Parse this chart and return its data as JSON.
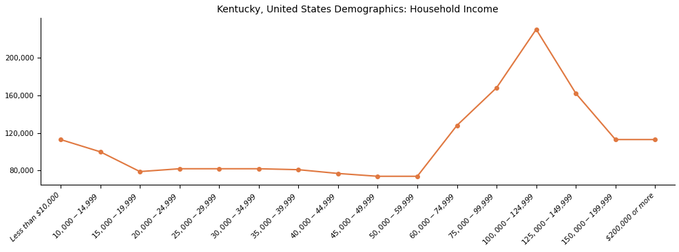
{
  "title": "Kentucky, United States Demographics: Household Income",
  "categories": [
    "Less than $10,000",
    "$10,000 - $14,999",
    "$15,000 - $19,999",
    "$20,000 - $24,999",
    "$25,000 - $29,999",
    "$30,000 - $34,999",
    "$35,000 - $39,999",
    "$40,000 - $44,999",
    "$45,000 - $49,999",
    "$50,000 - $59,999",
    "$60,000 - $74,999",
    "$75,000 - $99,999",
    "$100,000 - $124,999",
    "$125,000 - $149,999",
    "$150,000 - $199,999",
    "$200,000 or more"
  ],
  "values": [
    113000,
    100000,
    79000,
    82000,
    82000,
    82000,
    81000,
    77000,
    74000,
    74000,
    128000,
    168000,
    230000,
    162000,
    113000,
    113000
  ],
  "line_color": "#E07840",
  "marker_color": "#E07840",
  "background_color": "#ffffff",
  "ylim_low": 65000,
  "ylim_high": 242000,
  "yticks": [
    80000,
    120000,
    160000,
    200000
  ],
  "title_fontsize": 10,
  "tick_fontsize": 7.5,
  "marker_size": 4,
  "line_width": 1.5
}
